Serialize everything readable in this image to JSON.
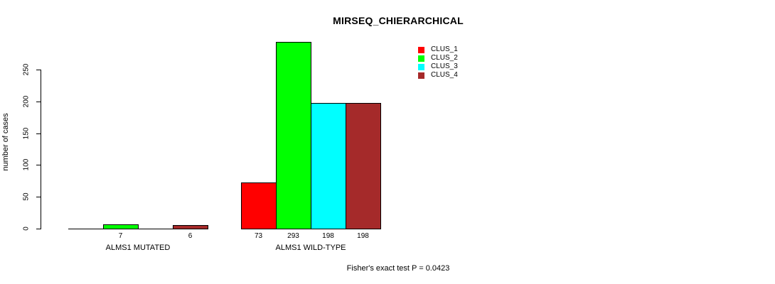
{
  "title": "MIRSEQ_CHIERARCHICAL",
  "chart_data": {
    "type": "bar",
    "categories": [
      "ALMS1 MUTATED",
      "ALMS1 WILD-TYPE"
    ],
    "series": [
      {
        "name": "CLUS_1",
        "color": "#FF0000",
        "values": [
          0,
          73
        ]
      },
      {
        "name": "CLUS_2",
        "color": "#00FF00",
        "values": [
          7,
          293
        ]
      },
      {
        "name": "CLUS_3",
        "color": "#00FFFF",
        "values": [
          0,
          198
        ]
      },
      {
        "name": "CLUS_4",
        "color": "#A52A2A",
        "values": [
          6,
          198
        ]
      }
    ],
    "ylabel": "number of cases",
    "xlabel": "",
    "yticks": [
      0,
      50,
      100,
      150,
      200,
      250
    ],
    "ylim": [
      0,
      293
    ],
    "grid": false,
    "legend_position": "top-right",
    "bar_value_labels": "shown under each nonzero bar",
    "footnote": "Fisher's exact test P = 0.0423"
  }
}
